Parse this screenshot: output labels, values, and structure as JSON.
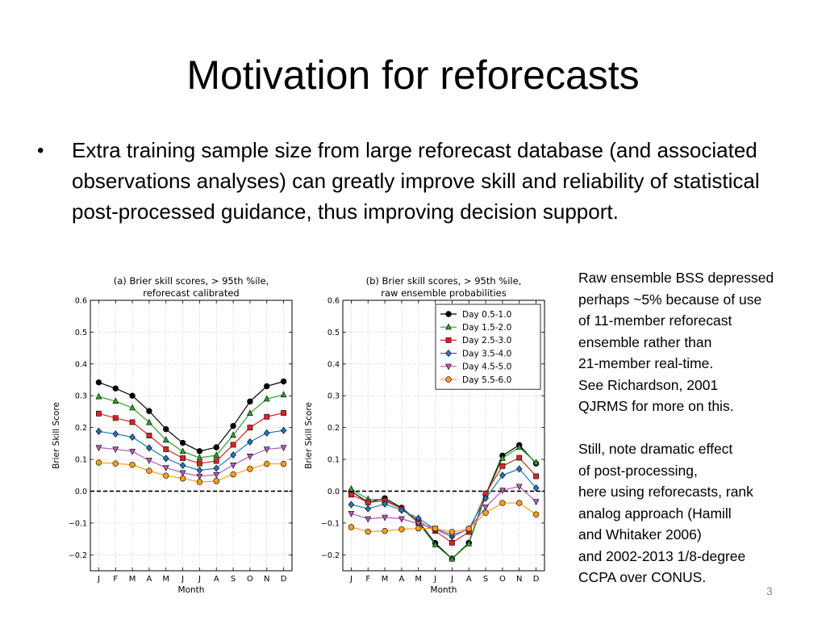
{
  "slide": {
    "title": "Motivation for reforecasts",
    "bullet_symbol": "•",
    "bullet_text": "Extra training sample size from large reforecast database (and associated observations analyses) can greatly improve skill and reliability of statistical post-processed guidance, thus improving decision support.",
    "side_note": "Raw ensemble BSS depressed\nperhaps ~5% because of use\nof 11-member reforecast\nensemble rather than\n21-member real-time.\nSee Richardson, 2001\nQJRMS for more on this.\n\nStill, note dramatic effect\nof post-processing,\nhere using reforecasts, rank\nanalog approach (Hamill\nand Whitaker 2006)\n and 2002-2013 1/8-degree\nCCPA over CONUS.",
    "page_number": "3"
  },
  "chart_data": [
    {
      "type": "line",
      "title_line1": "(a) Brier skill scores, > 95th %ile,",
      "title_line2": "reforecast calibrated",
      "xlabel": "Month",
      "ylabel": "Brier Skill Score",
      "ylim": [
        -0.25,
        0.6
      ],
      "yticks": [
        -0.2,
        -0.1,
        0.0,
        0.1,
        0.2,
        0.3,
        0.4,
        0.5,
        0.6
      ],
      "ytick_labels": [
        "−0.2",
        "−0.1",
        "0.0",
        "0.1",
        "0.2",
        "0.3",
        "0.4",
        "0.5",
        "0.6"
      ],
      "categories": [
        "J",
        "F",
        "M",
        "A",
        "M",
        "J",
        "J",
        "A",
        "S",
        "O",
        "N",
        "D"
      ],
      "grid": true,
      "zero_line": "dashed",
      "legend": null,
      "series": [
        {
          "name": "Day 0.5-1.0",
          "color": "#000000",
          "marker": "circle",
          "values": [
            0.342,
            0.323,
            0.3,
            0.252,
            0.195,
            0.152,
            0.126,
            0.138,
            0.205,
            0.282,
            0.33,
            0.345
          ]
        },
        {
          "name": "Day 1.5-2.0",
          "color": "#2ca02c",
          "marker": "triangle-up",
          "values": [
            0.297,
            0.283,
            0.262,
            0.216,
            0.161,
            0.125,
            0.105,
            0.113,
            0.176,
            0.245,
            0.29,
            0.303
          ]
        },
        {
          "name": "Day 2.5-3.0",
          "color": "#d62728",
          "marker": "square",
          "values": [
            0.244,
            0.23,
            0.217,
            0.175,
            0.132,
            0.104,
            0.087,
            0.095,
            0.146,
            0.2,
            0.234,
            0.246
          ]
        },
        {
          "name": "Day 3.5-4.0",
          "color": "#1f77b4",
          "marker": "diamond",
          "values": [
            0.188,
            0.18,
            0.17,
            0.136,
            0.103,
            0.081,
            0.066,
            0.072,
            0.114,
            0.155,
            0.183,
            0.191
          ]
        },
        {
          "name": "Day 4.5-5.0",
          "color": "#b35ab8",
          "marker": "triangle-down",
          "values": [
            0.137,
            0.132,
            0.125,
            0.097,
            0.074,
            0.058,
            0.047,
            0.052,
            0.082,
            0.11,
            0.132,
            0.137
          ]
        },
        {
          "name": "Day 5.5-6.0",
          "color": "#ff9f1c",
          "marker": "circle",
          "values": [
            0.09,
            0.087,
            0.083,
            0.064,
            0.049,
            0.04,
            0.029,
            0.032,
            0.053,
            0.07,
            0.086,
            0.086
          ]
        }
      ]
    },
    {
      "type": "line",
      "title_line1": "(b) Brier skill scores, > 95th %ile,",
      "title_line2": "raw ensemble probabilities",
      "xlabel": "Month",
      "ylabel": "Brier Skill Score",
      "ylim": [
        -0.25,
        0.6
      ],
      "yticks": [
        -0.2,
        -0.1,
        0.0,
        0.1,
        0.2,
        0.3,
        0.4,
        0.5,
        0.6
      ],
      "ytick_labels": [
        "−0.2",
        "−0.1",
        "0.0",
        "0.1",
        "0.2",
        "0.3",
        "0.4",
        "0.5",
        "0.6"
      ],
      "categories": [
        "J",
        "F",
        "M",
        "A",
        "M",
        "J",
        "J",
        "A",
        "S",
        "O",
        "N",
        "D"
      ],
      "grid": true,
      "zero_line": "dashed",
      "legend": "top-right",
      "series": [
        {
          "name": "Day 0.5-1.0",
          "color": "#000000",
          "marker": "circle",
          "values": [
            0.0,
            -0.035,
            -0.022,
            -0.052,
            -0.095,
            -0.163,
            -0.212,
            -0.162,
            -0.011,
            0.112,
            0.145,
            0.087
          ]
        },
        {
          "name": "Day 1.5-2.0",
          "color": "#2ca02c",
          "marker": "triangle-up",
          "values": [
            0.007,
            -0.025,
            -0.027,
            -0.055,
            -0.1,
            -0.168,
            -0.213,
            -0.165,
            -0.015,
            0.104,
            0.138,
            0.09
          ]
        },
        {
          "name": "Day 2.5-3.0",
          "color": "#d62728",
          "marker": "square",
          "values": [
            -0.011,
            -0.035,
            -0.03,
            -0.055,
            -0.095,
            -0.125,
            -0.162,
            -0.128,
            -0.007,
            0.079,
            0.105,
            0.047
          ]
        },
        {
          "name": "Day 3.5-4.0",
          "color": "#1f77b4",
          "marker": "diamond",
          "values": [
            -0.042,
            -0.055,
            -0.04,
            -0.06,
            -0.085,
            -0.12,
            -0.143,
            -0.118,
            -0.022,
            0.05,
            0.07,
            0.01
          ]
        },
        {
          "name": "Day 4.5-5.0",
          "color": "#b35ab8",
          "marker": "triangle-down",
          "values": [
            -0.07,
            -0.087,
            -0.082,
            -0.087,
            -0.102,
            -0.117,
            -0.137,
            -0.12,
            -0.05,
            0.003,
            0.015,
            -0.033
          ]
        },
        {
          "name": "Day 5.5-6.0",
          "color": "#ff9f1c",
          "marker": "circle",
          "values": [
            -0.113,
            -0.127,
            -0.125,
            -0.12,
            -0.117,
            -0.117,
            -0.128,
            -0.118,
            -0.068,
            -0.037,
            -0.037,
            -0.073
          ]
        }
      ]
    }
  ]
}
